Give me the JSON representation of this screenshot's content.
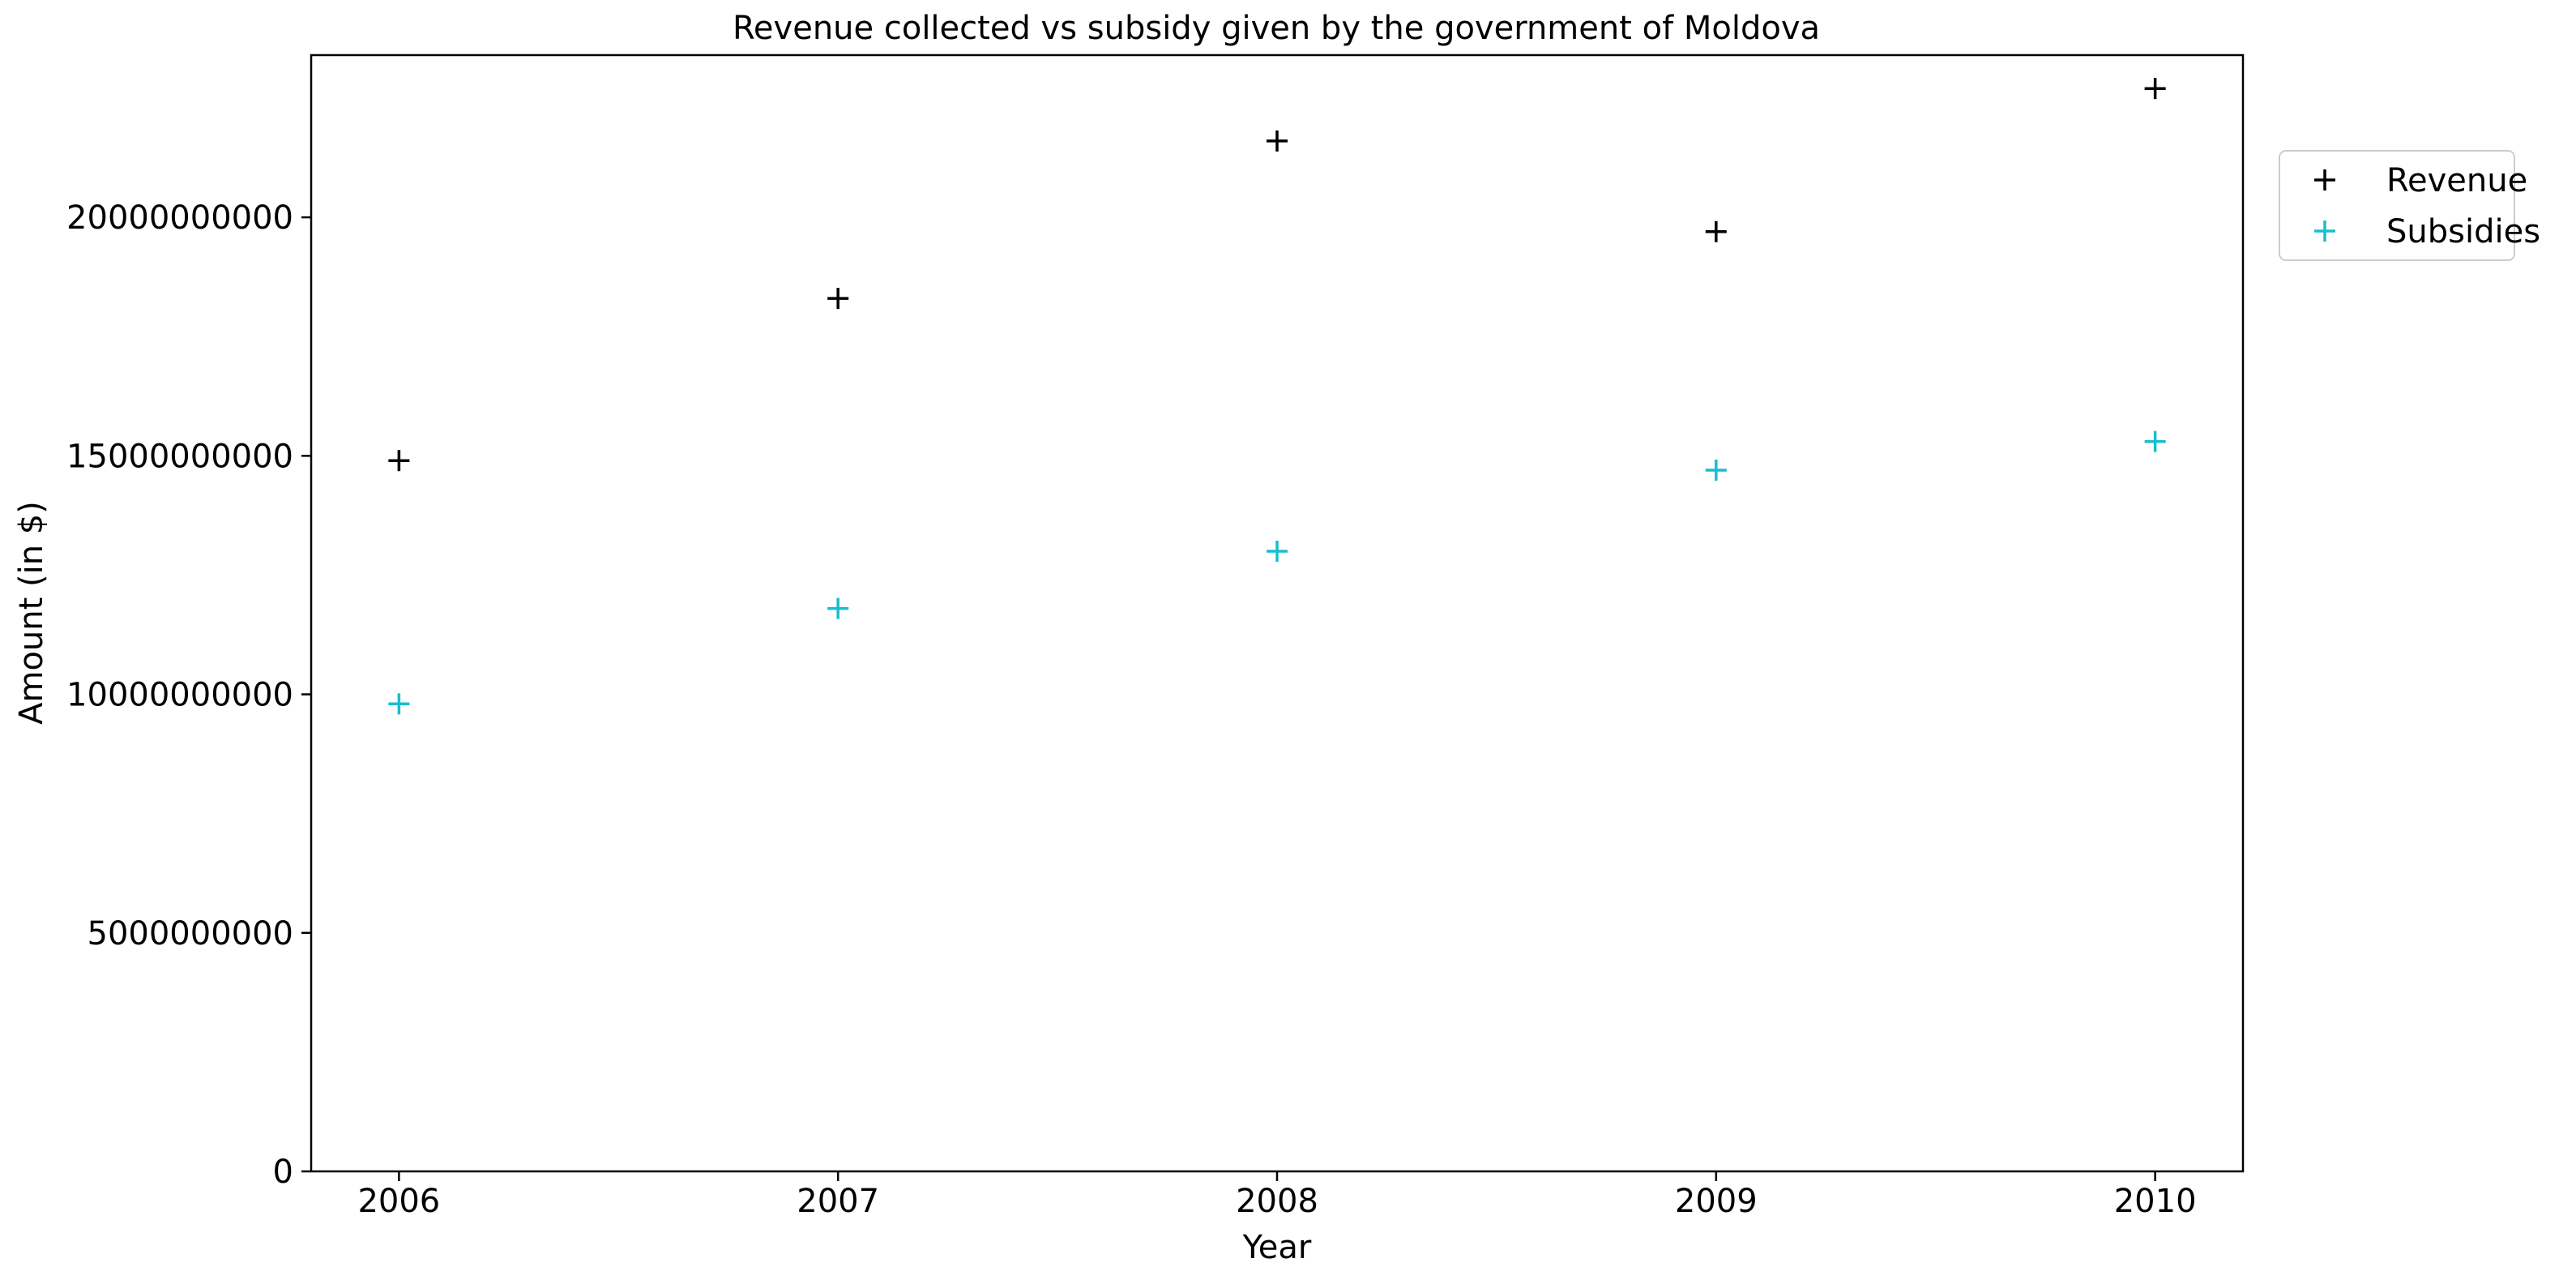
{
  "chart_data": {
    "type": "scatter",
    "title": "Revenue collected vs subsidy given by the government of Moldova",
    "xlabel": "Year",
    "ylabel": "Amount (in $)",
    "x": [
      2006,
      2007,
      2008,
      2009,
      2010
    ],
    "xticks": [
      "2006",
      "2007",
      "2008",
      "2009",
      "2010"
    ],
    "xlim": [
      2005.8,
      2010.2
    ],
    "ylim": [
      0,
      23400000000
    ],
    "yticks": [
      0,
      5000000000,
      10000000000,
      15000000000,
      20000000000
    ],
    "ytick_labels": [
      "0",
      "5000000000",
      "10000000000",
      "15000000000",
      "20000000000"
    ],
    "marker": "+",
    "grid": false,
    "legend_position": "outside upper right",
    "series": [
      {
        "name": "Revenue",
        "color": "#000000",
        "values": [
          14900000000,
          18300000000,
          21600000000,
          19700000000,
          22700000000
        ]
      },
      {
        "name": "Subsidies",
        "color": "#17becf",
        "values": [
          9800000000,
          11800000000,
          13000000000,
          14700000000,
          15300000000
        ]
      }
    ]
  }
}
